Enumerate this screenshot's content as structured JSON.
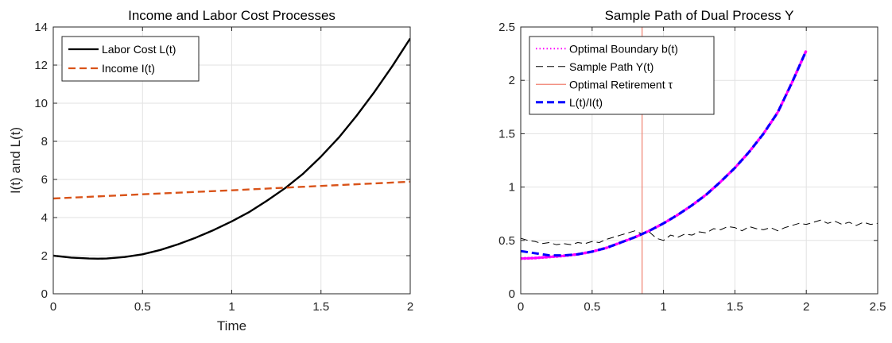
{
  "chart_data": [
    {
      "type": "line",
      "title": "Income and Labor Cost Processes",
      "xlabel": "Time",
      "ylabel": "I(t) and L(t)",
      "xlim": [
        0,
        2
      ],
      "ylim": [
        0,
        14
      ],
      "xticks": [
        0,
        0.5,
        1,
        1.5,
        2
      ],
      "xtick_labels": [
        "0",
        "0.5",
        "1",
        "1.5",
        "2"
      ],
      "yticks": [
        0,
        2,
        4,
        6,
        8,
        10,
        12,
        14
      ],
      "ytick_labels": [
        "0",
        "2",
        "4",
        "6",
        "8",
        "10",
        "12",
        "14"
      ],
      "grid": true,
      "legend_position": "top-left",
      "series": [
        {
          "name": "Labor Cost L(t)",
          "color": "#000000",
          "style": "solid",
          "x": [
            0,
            0.1,
            0.2,
            0.25,
            0.3,
            0.4,
            0.5,
            0.6,
            0.7,
            0.8,
            0.9,
            1.0,
            1.1,
            1.2,
            1.3,
            1.4,
            1.5,
            1.6,
            1.7,
            1.8,
            1.9,
            2.0
          ],
          "y": [
            2.0,
            1.9,
            1.85,
            1.84,
            1.85,
            1.93,
            2.07,
            2.3,
            2.6,
            2.95,
            3.35,
            3.8,
            4.3,
            4.9,
            5.55,
            6.3,
            7.2,
            8.2,
            9.35,
            10.6,
            11.95,
            13.4
          ]
        },
        {
          "name": "Income I(t)",
          "color": "#D95319",
          "style": "dashed",
          "x": [
            0,
            0.5,
            1.0,
            1.5,
            2.0
          ],
          "y": [
            5.0,
            5.22,
            5.43,
            5.66,
            5.88
          ]
        }
      ]
    },
    {
      "type": "line",
      "title": "Sample Path of Dual Process Y",
      "xlabel": "",
      "ylabel": "",
      "xlim": [
        0,
        2.5
      ],
      "ylim": [
        0,
        2.5
      ],
      "xticks": [
        0,
        0.5,
        1,
        1.5,
        2,
        2.5
      ],
      "xtick_labels": [
        "0",
        "0.5",
        "1",
        "1.5",
        "2",
        "2.5"
      ],
      "yticks": [
        0,
        0.5,
        1,
        1.5,
        2,
        2.5
      ],
      "ytick_labels": [
        "0",
        "0.5",
        "1",
        "1.5",
        "2",
        "2.5"
      ],
      "grid": true,
      "legend_position": "top-left",
      "series": [
        {
          "name": "Optimal Boundary b(t)",
          "color": "#FF00FF",
          "style": "dotted",
          "x": [
            0,
            0.1,
            0.2,
            0.3,
            0.4,
            0.5,
            0.6,
            0.7,
            0.8,
            0.85,
            0.9,
            1.0,
            1.1,
            1.2,
            1.3,
            1.4,
            1.5,
            1.6,
            1.7,
            1.8,
            1.9,
            2.0
          ],
          "y": [
            0.33,
            0.335,
            0.345,
            0.355,
            0.37,
            0.395,
            0.43,
            0.48,
            0.53,
            0.56,
            0.59,
            0.66,
            0.74,
            0.83,
            0.93,
            1.05,
            1.18,
            1.33,
            1.5,
            1.7,
            1.98,
            2.28
          ]
        },
        {
          "name": "Sample Path Y(t)",
          "color": "#000000",
          "style": "dashed",
          "x": [
            0,
            0.05,
            0.1,
            0.15,
            0.2,
            0.25,
            0.3,
            0.35,
            0.4,
            0.45,
            0.5,
            0.55,
            0.6,
            0.65,
            0.7,
            0.75,
            0.8,
            0.85,
            0.9,
            0.95,
            1.0,
            1.05,
            1.1,
            1.15,
            1.2,
            1.25,
            1.3,
            1.35,
            1.4,
            1.45,
            1.5,
            1.55,
            1.6,
            1.65,
            1.7,
            1.75,
            1.8,
            1.85,
            1.9,
            1.95,
            2.0,
            2.05,
            2.1,
            2.15,
            2.2,
            2.25,
            2.3,
            2.35,
            2.4,
            2.45,
            2.5
          ],
          "y": [
            0.52,
            0.5,
            0.49,
            0.47,
            0.48,
            0.46,
            0.47,
            0.46,
            0.48,
            0.47,
            0.49,
            0.48,
            0.51,
            0.53,
            0.55,
            0.57,
            0.59,
            0.56,
            0.58,
            0.52,
            0.5,
            0.55,
            0.53,
            0.56,
            0.55,
            0.58,
            0.57,
            0.61,
            0.6,
            0.63,
            0.62,
            0.59,
            0.63,
            0.61,
            0.6,
            0.62,
            0.59,
            0.62,
            0.64,
            0.66,
            0.65,
            0.67,
            0.69,
            0.66,
            0.68,
            0.65,
            0.67,
            0.64,
            0.67,
            0.65,
            0.66
          ]
        },
        {
          "name": "Optimal Retirement τ",
          "color": "#F08070",
          "style": "solid",
          "x": [
            0.85,
            0.85
          ],
          "y": [
            0,
            2.5
          ]
        },
        {
          "name": "L(t)/I(t)",
          "color": "#0000FF",
          "style": "dashed",
          "x": [
            0,
            0.1,
            0.2,
            0.3,
            0.4,
            0.5,
            0.6,
            0.7,
            0.8,
            0.85,
            0.9,
            1.0,
            1.1,
            1.2,
            1.3,
            1.4,
            1.5,
            1.6,
            1.7,
            1.8,
            1.9,
            2.0
          ],
          "y": [
            0.4,
            0.38,
            0.36,
            0.36,
            0.37,
            0.395,
            0.43,
            0.48,
            0.53,
            0.56,
            0.59,
            0.66,
            0.74,
            0.83,
            0.93,
            1.05,
            1.18,
            1.33,
            1.5,
            1.7,
            1.98,
            2.28
          ]
        }
      ]
    }
  ]
}
